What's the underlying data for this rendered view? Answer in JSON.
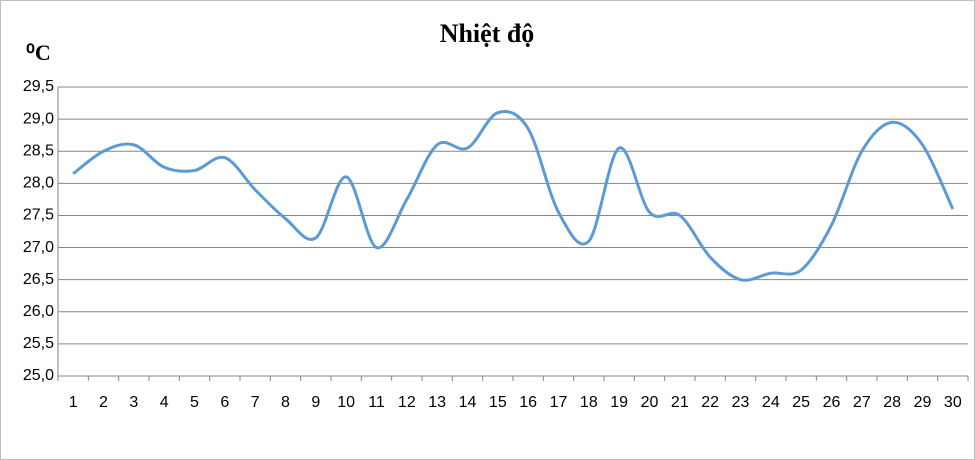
{
  "chart_data": {
    "type": "line",
    "title": "Nhiệt độ",
    "y_label": "⁰C",
    "categories": [
      "1",
      "2",
      "3",
      "4",
      "5",
      "6",
      "7",
      "8",
      "9",
      "10",
      "11",
      "12",
      "13",
      "14",
      "15",
      "16",
      "17",
      "18",
      "19",
      "20",
      "21",
      "22",
      "23",
      "24",
      "25",
      "26",
      "27",
      "28",
      "29",
      "30"
    ],
    "values": [
      28.15,
      28.5,
      28.6,
      28.25,
      28.2,
      28.4,
      27.9,
      27.45,
      27.15,
      28.1,
      27.0,
      27.75,
      28.6,
      28.55,
      29.1,
      28.85,
      27.55,
      27.1,
      28.55,
      27.55,
      27.5,
      26.85,
      26.5,
      26.6,
      26.65,
      27.35,
      28.5,
      28.95,
      28.6,
      27.6
    ],
    "color": "#5b9bd5",
    "smooth": true,
    "ylim": [
      25,
      29.5
    ],
    "yticks": [
      {
        "value": 25,
        "label": "25,0"
      },
      {
        "value": 25.5,
        "label": "25,5"
      },
      {
        "value": 26,
        "label": "26,0"
      },
      {
        "value": 26.5,
        "label": "26,5"
      },
      {
        "value": 27,
        "label": "27,0"
      },
      {
        "value": 27.5,
        "label": "27,5"
      },
      {
        "value": 28,
        "label": "28,0"
      },
      {
        "value": 28.5,
        "label": "28,5"
      },
      {
        "value": 29,
        "label": "29,0"
      },
      {
        "value": 29.5,
        "label": "29,5"
      }
    ],
    "grid": true
  }
}
